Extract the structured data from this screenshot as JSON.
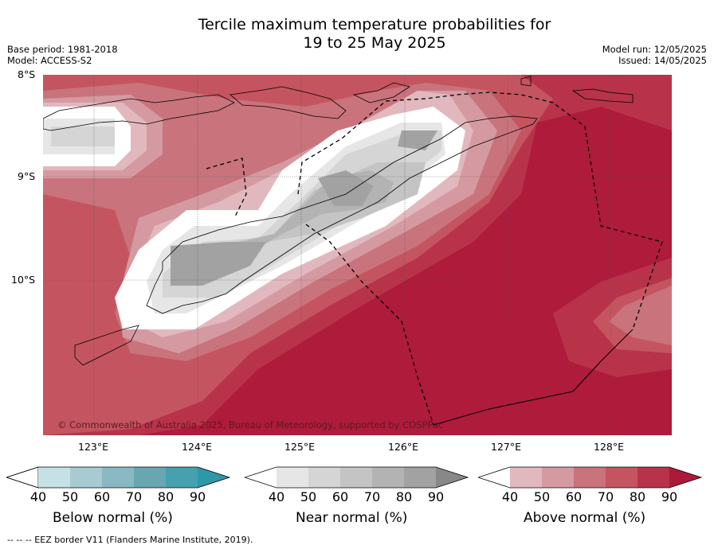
{
  "title_line1": "Tercile maximum temperature probabilities for",
  "title_line2": "19 to 25 May 2025",
  "base_period": "Base period: 1981-2018",
  "model": "Model: ACCESS-S2",
  "model_run": "Model run: 12/05/2025",
  "issued": "Issued: 14/05/2025",
  "lat_labels": [
    "8°S",
    "9°S",
    "10°S"
  ],
  "lon_labels": [
    "123°E",
    "124°E",
    "125°E",
    "126°E",
    "127°E",
    "128°E"
  ],
  "copyright": "© Commonwealth of Australia 2025, Bureau of Meteorology, supported by COSPPac",
  "colorbars": [
    {
      "name": "Below normal (%)",
      "ticks": [
        "40",
        "50",
        "60",
        "70",
        "80",
        "90"
      ],
      "colors": [
        "#c6e1e6",
        "#a7cbd1",
        "#89b9c2",
        "#68a7b2",
        "#46a0ae",
        "#2f98a8"
      ]
    },
    {
      "name": "Near normal (%)",
      "ticks": [
        "40",
        "50",
        "60",
        "70",
        "80",
        "90"
      ],
      "colors": [
        "#e6e6e6",
        "#d5d5d5",
        "#c4c4c4",
        "#b3b3b3",
        "#a2a2a2",
        "#888888"
      ]
    },
    {
      "name": "Above normal (%)",
      "ticks": [
        "40",
        "50",
        "60",
        "70",
        "80",
        "90"
      ],
      "colors": [
        "#e2b8bf",
        "#d59aa1",
        "#c9737c",
        "#c45560",
        "#b8334a",
        "#ac1a3a"
      ]
    }
  ],
  "footer": "--  --  -- EEZ border V11 (Flanders Marine Institute, 2019)."
}
